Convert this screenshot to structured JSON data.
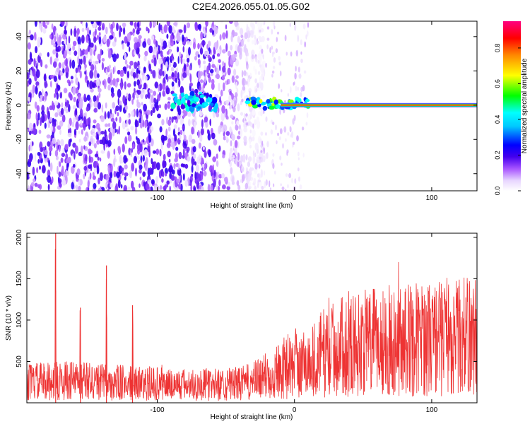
{
  "page_title": "C2E4.2026.055.01.05.G02",
  "chart_data": [
    {
      "type": "heatmap",
      "title": "C2E4.2026.055.01.05.G02",
      "xlabel": "Height of straight line (km)",
      "ylabel": "Frequency (Hz)",
      "xlim": [
        -195,
        133
      ],
      "ylim": [
        -50,
        49
      ],
      "x_ticks": [
        -100,
        0,
        100
      ],
      "x_tick_labels": [
        "-100",
        "0",
        "100"
      ],
      "y_ticks": [
        -40,
        -20,
        0,
        20,
        40
      ],
      "y_tick_labels": [
        "-40",
        "-20",
        "0",
        "20",
        "40"
      ],
      "colorbar": {
        "label": "Normalized spectral amplitude",
        "range": [
          0,
          0.95
        ],
        "ticks": [
          0.0,
          0.2,
          0.4,
          0.6,
          0.8
        ],
        "tick_labels": [
          "0.0",
          "0.2",
          "0.4",
          "0.6",
          "0.8"
        ],
        "colormap": [
          "#ffffff",
          "#e6ccff",
          "#9933ff",
          "#5500ee",
          "#0000ff",
          "#00ffff",
          "#00ff00",
          "#ffff00",
          "#ff8800",
          "#ff0000",
          "#ff0088"
        ]
      },
      "features": [
        {
          "name": "broadband noise",
          "x_range": [
            -195,
            -30
          ],
          "y_range": [
            -50,
            49
          ],
          "amplitude": 0.15
        },
        {
          "name": "sparse noise",
          "x_range": [
            -35,
            10
          ],
          "y_range": [
            -50,
            49
          ],
          "amplitude": 0.08
        },
        {
          "name": "blob cluster",
          "x_center": -75,
          "x_halfwidth": 18,
          "y_center": 2,
          "y_halfwidth": 5,
          "amplitude": 0.4
        },
        {
          "name": "emerging signal",
          "x_range": [
            -35,
            10
          ],
          "y_center": 1,
          "y_halfwidth": 3,
          "amplitude": 0.5
        },
        {
          "name": "narrowband carrier",
          "x_range": [
            -10,
            133
          ],
          "y_value": 0,
          "amplitude": 0.9
        }
      ]
    },
    {
      "type": "line",
      "xlabel": "Height of straight line (km)",
      "ylabel": "SNR (10 * v/v)",
      "xlim": [
        -195,
        133
      ],
      "ylim": [
        0,
        2050
      ],
      "x_ticks": [
        -100,
        0,
        100
      ],
      "x_tick_labels": [
        "-100",
        "0",
        "100"
      ],
      "y_ticks": [
        500,
        1000,
        1500,
        2000
      ],
      "y_tick_labels": [
        "500",
        "1000",
        "1500",
        "2000"
      ],
      "series": [
        {
          "name": "SNR",
          "color": "#ee3333",
          "x": [
            -195,
            -180,
            -160,
            -140,
            -120,
            -100,
            -80,
            -60,
            -40,
            -30,
            -20,
            -10,
            0,
            10,
            15,
            20,
            30,
            40,
            60,
            80,
            100,
            120,
            133
          ],
          "values": [
            250,
            260,
            270,
            250,
            240,
            230,
            220,
            220,
            230,
            260,
            330,
            410,
            450,
            480,
            520,
            600,
            660,
            700,
            740,
            760,
            780,
            800,
            820
          ],
          "peaks": [
            {
              "x": -174,
              "value": 2050
            },
            {
              "x": -156,
              "value": 1150
            },
            {
              "x": -137,
              "value": 1660
            },
            {
              "x": -118,
              "value": 1180
            }
          ]
        }
      ]
    }
  ]
}
